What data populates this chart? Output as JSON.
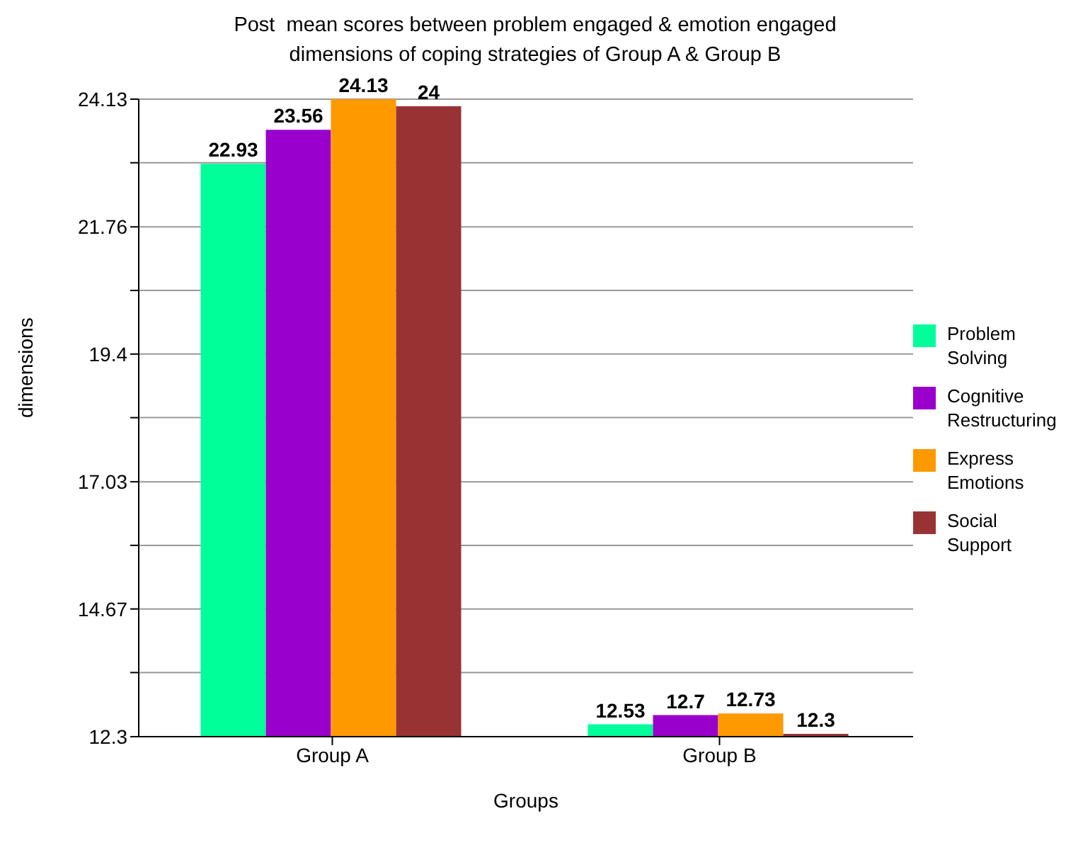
{
  "chart_data": {
    "type": "bar",
    "title": "Post  mean scores between problem engaged & emotion engaged dimensions of coping strategies of Group A & Group B",
    "xlabel": "Groups",
    "ylabel": "dimensions",
    "categories": [
      "Group A",
      "Group B"
    ],
    "series": [
      {
        "name": "Problem Solving",
        "color": "#00ff99",
        "values": [
          22.93,
          12.53
        ]
      },
      {
        "name": "Cognitive Restructuring",
        "color": "#9900cc",
        "values": [
          23.56,
          12.7
        ]
      },
      {
        "name": "Express Emotions",
        "color": "#ff9900",
        "values": [
          24.13,
          12.73
        ]
      },
      {
        "name": "Social Support",
        "color": "#993333",
        "values": [
          24,
          12.3
        ]
      }
    ],
    "ylim": [
      12.3,
      24.13
    ],
    "yticks": [
      12.3,
      {
        "value": 13.49,
        "label": null
      },
      14.67,
      {
        "value": 15.85,
        "label": null
      },
      17.03,
      {
        "value": 18.22,
        "label": null
      },
      19.4,
      {
        "value": 20.58,
        "label": null
      },
      21.76,
      {
        "value": 22.95,
        "label": null
      },
      24.13
    ],
    "grid": "y",
    "legend": "right",
    "data_labels": true
  }
}
